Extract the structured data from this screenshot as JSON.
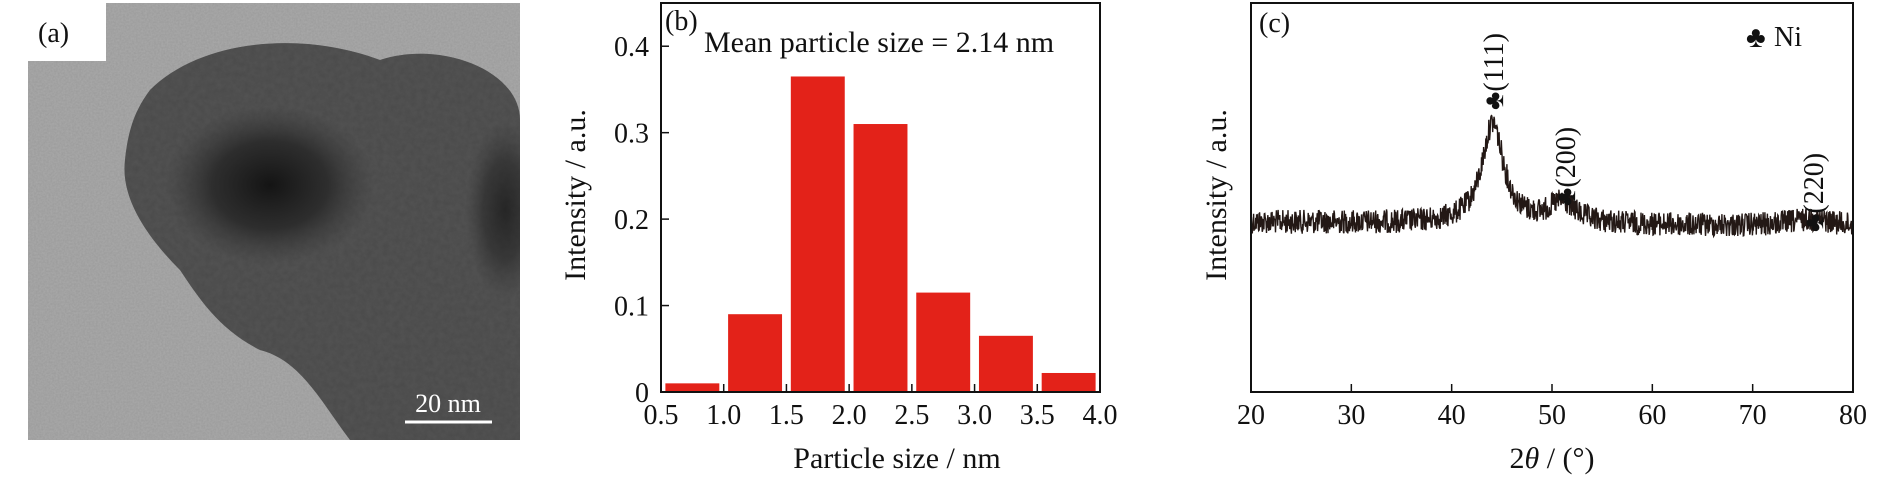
{
  "panel_a": {
    "label": "(a)",
    "scale_bar": "20 nm"
  },
  "colors": {
    "bar": "#e32219",
    "line": "#231815",
    "axis": "#111111"
  },
  "chart_data": [
    {
      "type": "bar",
      "panel_label": "(b)",
      "annotation": "Mean particle size = 2.14 nm",
      "xlabel": "Particle size / nm",
      "ylabel": "Intensity / a.u.",
      "xlim": [
        0.5,
        4.0
      ],
      "ylim": [
        0,
        0.45
      ],
      "xticks": [
        "0.5",
        "1.0",
        "1.5",
        "2.0",
        "2.5",
        "3.0",
        "3.5",
        "4.0"
      ],
      "yticks": [
        "0",
        "0.1",
        "0.2",
        "0.3",
        "0.4"
      ],
      "bin_centers": [
        0.75,
        1.25,
        1.75,
        2.25,
        2.75,
        3.25,
        3.75
      ],
      "values": [
        0.01,
        0.09,
        0.365,
        0.31,
        0.115,
        0.065,
        0.022
      ],
      "grid": false
    },
    {
      "type": "line",
      "panel_label": "(c)",
      "xlabel": "2θ / (°)",
      "ylabel": "Intensity / a.u.",
      "xlim": [
        20,
        80
      ],
      "xticks": [
        "20",
        "30",
        "40",
        "50",
        "60",
        "70",
        "80"
      ],
      "y_ticks_shown": false,
      "legend": {
        "symbol": "♣",
        "label": "Ni",
        "position": "top-right"
      },
      "peaks": [
        {
          "x": 44.3,
          "label": "♣(111)"
        },
        {
          "x": 51.5,
          "label": "♣(200)"
        },
        {
          "x": 76.2,
          "label": "♣(220)"
        }
      ],
      "grid": false
    }
  ]
}
